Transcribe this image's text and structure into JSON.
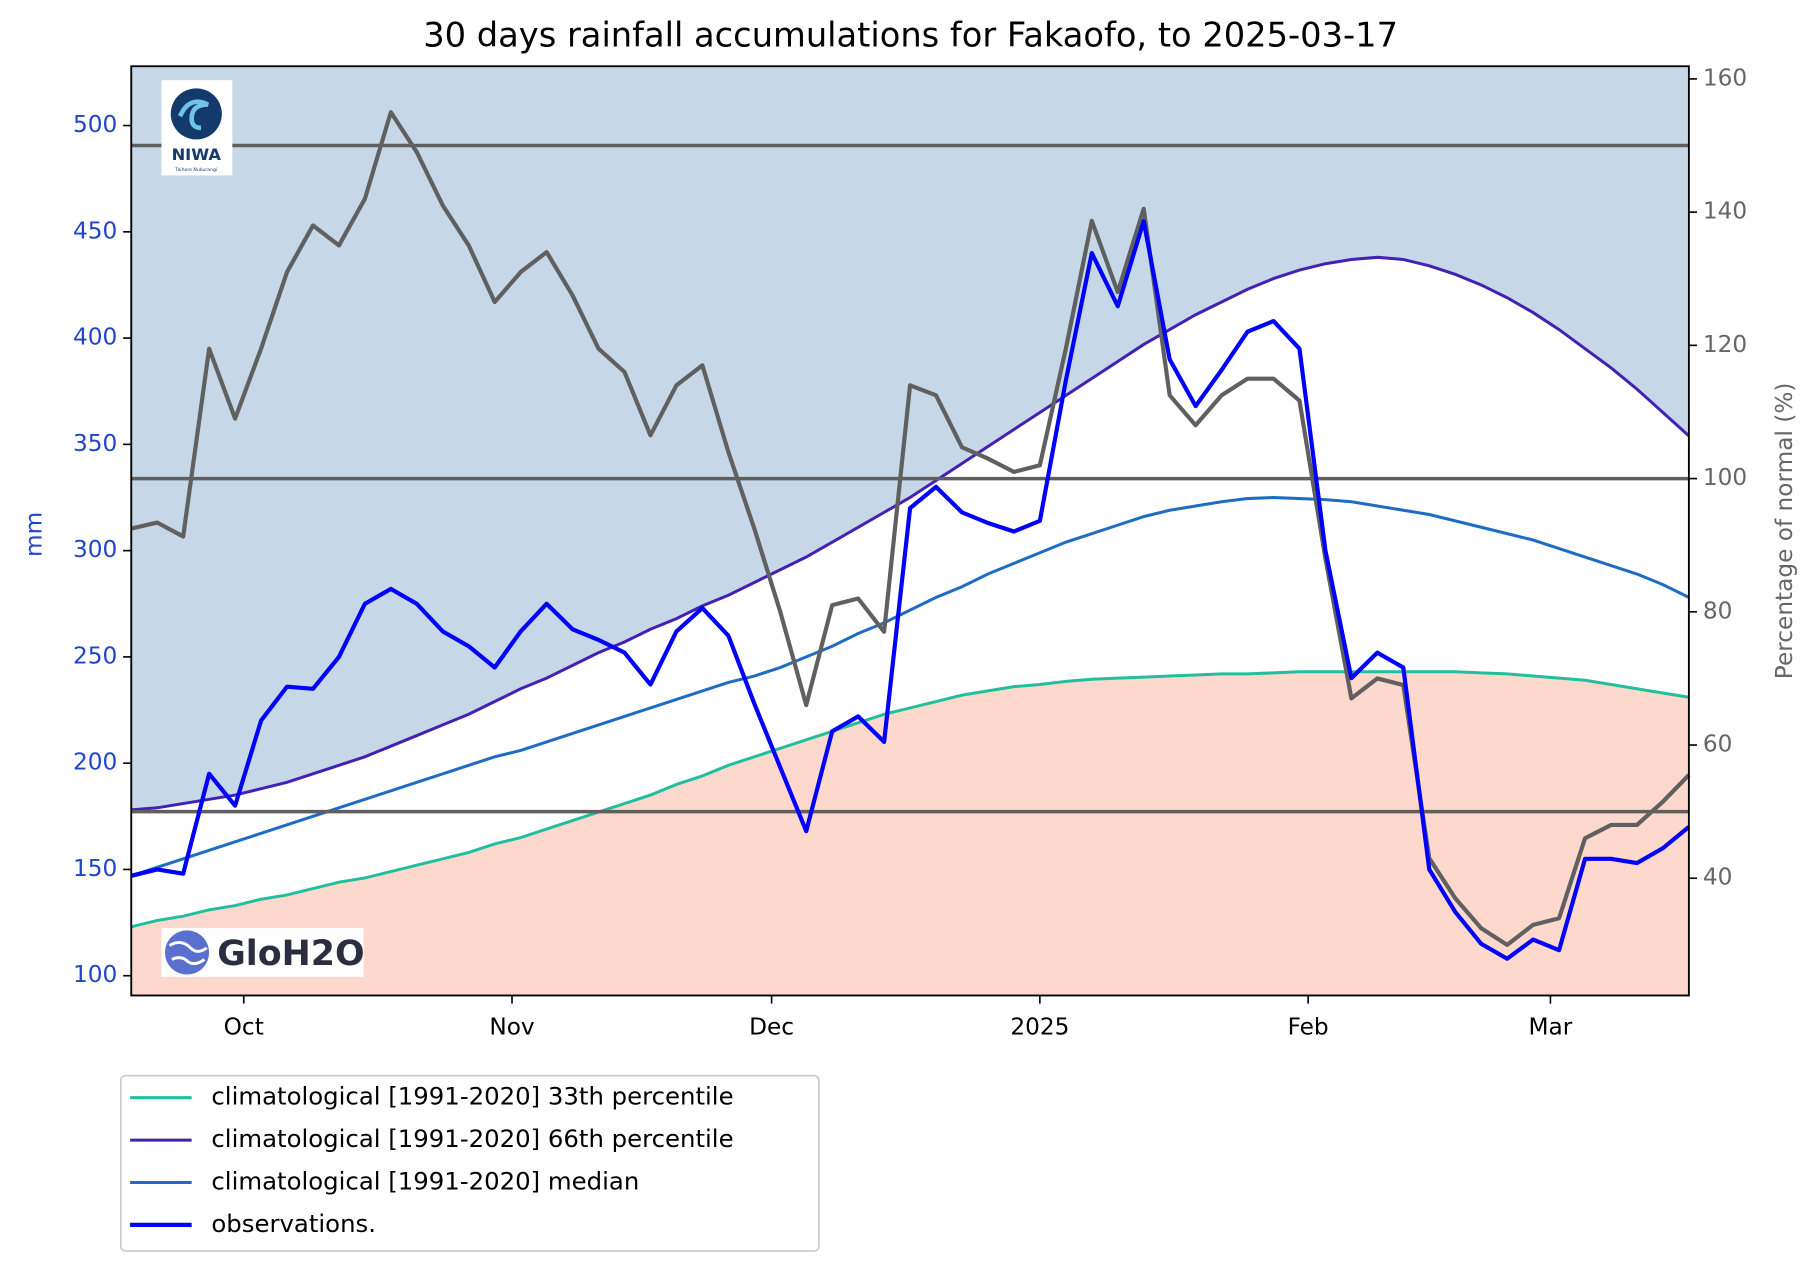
{
  "chart_data": {
    "type": "line",
    "title": "30 days rainfall accumulations for Fakaofo, to 2025-03-17",
    "ylabel": "mm",
    "y2label": "Percentage of normal (%)",
    "logos": {
      "niwa": "NIWA",
      "niwa_subtitle": "Taihoro Nukurangi",
      "gloh2o": "GloH2O"
    },
    "x": [
      "2024-09-18",
      "2024-09-21",
      "2024-09-24",
      "2024-09-27",
      "2024-09-30",
      "2024-10-03",
      "2024-10-06",
      "2024-10-09",
      "2024-10-12",
      "2024-10-15",
      "2024-10-18",
      "2024-10-21",
      "2024-10-24",
      "2024-10-27",
      "2024-10-30",
      "2024-11-02",
      "2024-11-05",
      "2024-11-08",
      "2024-11-11",
      "2024-11-14",
      "2024-11-17",
      "2024-11-20",
      "2024-11-23",
      "2024-11-26",
      "2024-11-29",
      "2024-12-02",
      "2024-12-05",
      "2024-12-08",
      "2024-12-11",
      "2024-12-14",
      "2024-12-17",
      "2024-12-20",
      "2024-12-23",
      "2024-12-26",
      "2024-12-29",
      "2025-01-01",
      "2025-01-04",
      "2025-01-07",
      "2025-01-10",
      "2025-01-13",
      "2025-01-16",
      "2025-01-19",
      "2025-01-22",
      "2025-01-25",
      "2025-01-28",
      "2025-01-31",
      "2025-02-03",
      "2025-02-06",
      "2025-02-09",
      "2025-02-12",
      "2025-02-15",
      "2025-02-18",
      "2025-02-21",
      "2025-02-24",
      "2025-02-27",
      "2025-03-02",
      "2025-03-05",
      "2025-03-08",
      "2025-03-11",
      "2025-03-14",
      "2025-03-17"
    ],
    "xlim": [
      "2024-09-18",
      "2025-03-17"
    ],
    "xticks": [
      {
        "value": "2024-10-01",
        "label": "Oct"
      },
      {
        "value": "2024-11-01",
        "label": "Nov"
      },
      {
        "value": "2024-12-01",
        "label": "Dec"
      },
      {
        "value": "2025-01-01",
        "label": "2025"
      },
      {
        "value": "2025-02-01",
        "label": "Feb"
      },
      {
        "value": "2025-03-01",
        "label": "Mar"
      }
    ],
    "ylim": [
      90.7,
      527.9
    ],
    "yticks": [
      100,
      150,
      200,
      250,
      300,
      350,
      400,
      450,
      500
    ],
    "y2lim": [
      22.4,
      161.9
    ],
    "y2ticks": [
      40,
      60,
      80,
      100,
      120,
      140,
      160
    ],
    "reference_lines_y2": [
      50,
      100,
      150
    ],
    "reference_color": "#5f5f5f",
    "shading": {
      "above_66th": "#c6d8e8",
      "below_33rd": "#fdd8cc"
    },
    "series": [
      {
        "name": "climatological [1991-2020] 33th percentile",
        "color": "#22bf9e",
        "values": [
          123,
          126,
          128,
          131,
          133,
          136,
          138,
          141,
          144,
          146,
          149,
          152,
          155,
          158,
          162,
          165,
          169,
          173,
          177,
          181,
          185,
          190,
          194,
          199,
          203,
          207,
          211,
          215,
          219,
          223,
          226,
          229,
          232,
          234,
          236,
          237,
          238.5,
          239.5,
          240,
          240.5,
          241,
          241.5,
          242,
          242,
          242.5,
          243,
          243,
          243,
          243,
          243,
          243,
          243,
          242.5,
          242,
          241,
          240,
          239,
          237,
          235,
          233,
          231
        ]
      },
      {
        "name": "climatological [1991-2020] 66th percentile",
        "color": "#4321b3",
        "values": [
          178,
          179,
          181,
          183,
          185,
          188,
          191,
          195,
          199,
          203,
          208,
          213,
          218,
          223,
          229,
          235,
          240,
          246,
          252,
          257,
          263,
          268,
          274,
          279,
          285,
          291,
          297,
          304,
          311,
          318,
          325,
          333,
          341,
          349,
          357,
          365,
          373,
          381,
          389,
          397,
          404,
          411,
          417,
          423,
          428,
          432,
          435,
          437,
          438,
          437,
          434,
          430,
          425,
          419,
          412,
          404,
          395,
          386,
          376,
          365,
          354
        ]
      },
      {
        "name": "climatological [1991-2020] median",
        "color": "#1f6cc4",
        "values": [
          147,
          151,
          155,
          159,
          163,
          167,
          171,
          175,
          179,
          183,
          187,
          191,
          195,
          199,
          203,
          206,
          210,
          214,
          218,
          222,
          226,
          230,
          234,
          238,
          241,
          245,
          250,
          255,
          261,
          266,
          272,
          278,
          283,
          289,
          294,
          299,
          304,
          308,
          312,
          316,
          319,
          321,
          323,
          324.5,
          325,
          324.5,
          324,
          323,
          321,
          319,
          317,
          314,
          311,
          308,
          305,
          301,
          297,
          293,
          289,
          284,
          278
        ]
      },
      {
        "name": "observations.",
        "color": "#0000ff",
        "values": [
          147,
          150,
          148,
          195,
          180,
          220,
          236,
          235,
          250,
          275,
          282,
          275,
          262,
          255,
          245,
          262,
          275,
          263,
          258,
          252,
          237,
          262,
          273,
          260,
          228,
          198,
          168,
          215,
          222,
          210,
          320,
          330,
          318,
          313,
          309,
          314,
          380,
          440,
          415,
          455,
          390,
          368,
          385,
          403,
          408,
          395,
          300,
          240,
          252,
          245,
          150,
          130,
          115,
          108,
          117,
          112,
          155,
          155,
          153,
          160,
          170
        ]
      },
      {
        "color": "#606060",
        "axis": "y2",
        "values": [
          92.5,
          93.4,
          91.3,
          119.5,
          109,
          119.5,
          131,
          138,
          135,
          142,
          155,
          149,
          141,
          135,
          126.5,
          131,
          134,
          127.5,
          119.5,
          116,
          106.5,
          114,
          117,
          104,
          92.5,
          80,
          66,
          81,
          82,
          77,
          114,
          112.5,
          104.7,
          103,
          101,
          102,
          119.5,
          138.7,
          128,
          140.5,
          112.5,
          108,
          112.5,
          115,
          115,
          111.7,
          88,
          67,
          70,
          69,
          43,
          37,
          32.5,
          30,
          33,
          34,
          46,
          48,
          48,
          51.5,
          55.5
        ]
      }
    ]
  }
}
